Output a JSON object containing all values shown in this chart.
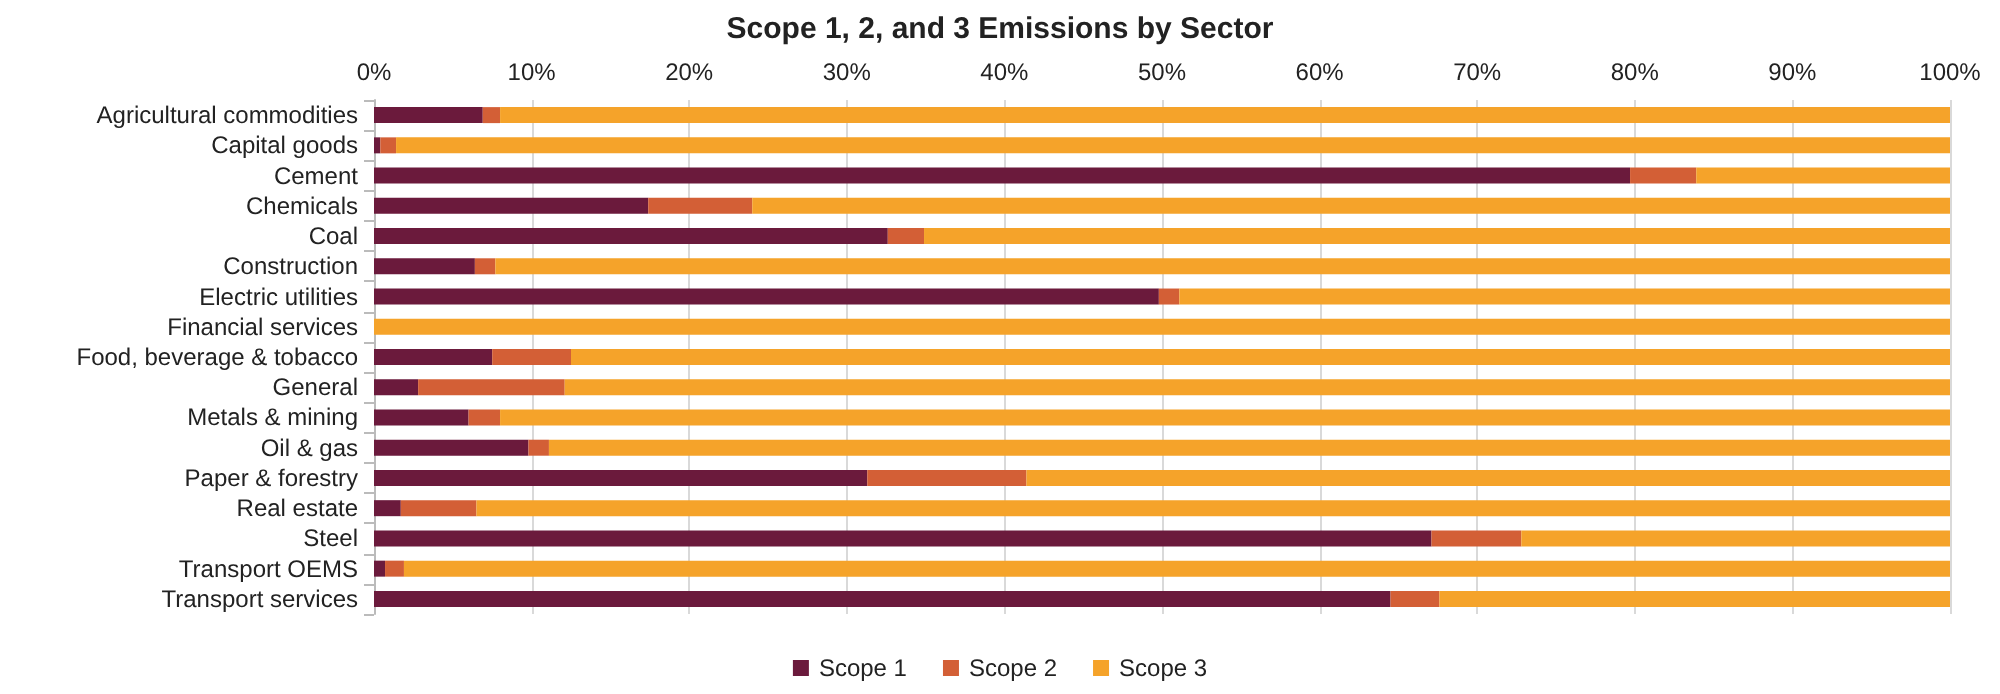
{
  "chart_data": {
    "type": "bar",
    "title": "Scope 1, 2, and 3 Emissions by Sector",
    "orientation": "horizontal",
    "stacked": true,
    "grid": "x",
    "legend": "bottom",
    "categories": [
      "Agricultural commodities",
      "Capital goods",
      "Cement",
      "Chemicals",
      "Coal",
      "Construction",
      "Electric utilities",
      "Financial services",
      "Food, beverage & tobacco",
      "General",
      "Metals & mining",
      "Oil & gas",
      "Paper & forestry",
      "Real estate",
      "Steel",
      "Transport OEMS",
      "Transport services"
    ],
    "series": [
      {
        "name": "Scope 1",
        "color": "#6b1a3c",
        "values": [
          6.9,
          0.4,
          79.7,
          17.4,
          32.6,
          6.4,
          49.8,
          0,
          7.5,
          2.8,
          6.0,
          9.8,
          31.3,
          1.7,
          67.1,
          0.7,
          64.5
        ]
      },
      {
        "name": "Scope 2",
        "color": "#d35f36",
        "values": [
          1.1,
          1.0,
          4.2,
          6.6,
          2.3,
          1.3,
          1.3,
          0,
          5.0,
          9.3,
          2.0,
          1.3,
          10.1,
          4.8,
          5.7,
          1.2,
          3.1
        ]
      },
      {
        "name": "Scope 3",
        "color": "#f5a32a",
        "values": [
          92.0,
          98.6,
          16.1,
          76.0,
          65.1,
          92.3,
          48.9,
          100,
          87.5,
          87.9,
          92.0,
          88.9,
          58.6,
          93.5,
          27.2,
          98.1,
          32.4
        ]
      }
    ],
    "xlim": [
      0,
      100
    ],
    "xticks": [
      {
        "value": 0,
        "label": "0%"
      },
      {
        "value": 10,
        "label": "10%"
      },
      {
        "value": 20,
        "label": "20%"
      },
      {
        "value": 30,
        "label": "30%"
      },
      {
        "value": 40,
        "label": "40%"
      },
      {
        "value": 50,
        "label": "50%"
      },
      {
        "value": 60,
        "label": "60%"
      },
      {
        "value": 70,
        "label": "70%"
      },
      {
        "value": 80,
        "label": "80%"
      },
      {
        "value": 90,
        "label": "90%"
      },
      {
        "value": 100,
        "label": "100%"
      }
    ]
  }
}
